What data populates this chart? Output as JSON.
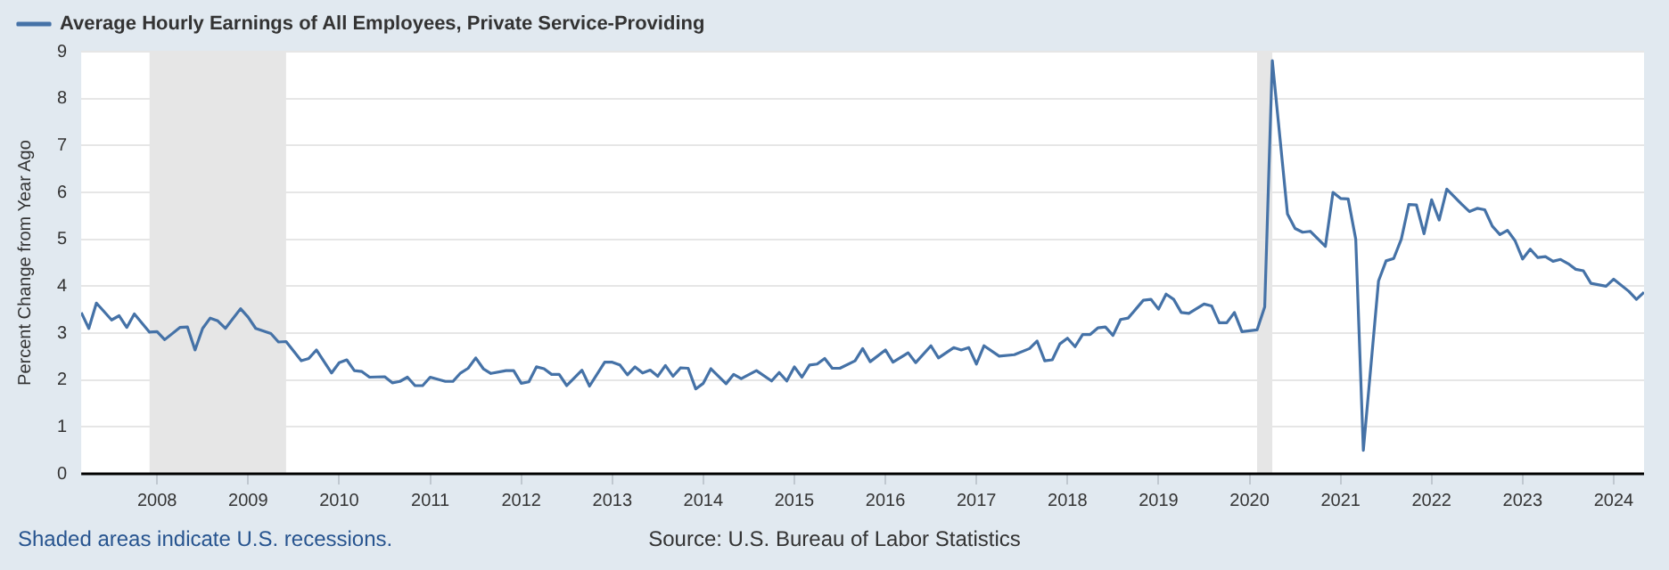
{
  "chart_data": {
    "type": "line",
    "ylabel": "Percent Change from Year Ago",
    "annotations": [
      "Shaded areas indicate U.S. recessions.",
      "Source: U.S. Bureau of Labor Statistics"
    ],
    "x": [
      "2007-03",
      "2007-04",
      "2007-05",
      "2007-07",
      "2007-08",
      "2007-09",
      "2007-10",
      "2007-12",
      "2008-01",
      "2008-02",
      "2008-04",
      "2008-05",
      "2008-06",
      "2008-07",
      "2008-08",
      "2008-09",
      "2008-10",
      "2008-12",
      "2009-01",
      "2009-02",
      "2009-04",
      "2009-05",
      "2009-06",
      "2009-08",
      "2009-09",
      "2009-10",
      "2009-12",
      "2010-01",
      "2010-02",
      "2010-03",
      "2010-04",
      "2010-05",
      "2010-07",
      "2010-08",
      "2010-09",
      "2010-10",
      "2010-11",
      "2010-12",
      "2011-01",
      "2011-03",
      "2011-04",
      "2011-05",
      "2011-06",
      "2011-07",
      "2011-08",
      "2011-09",
      "2011-11",
      "2011-12",
      "2012-01",
      "2012-02",
      "2012-03",
      "2012-04",
      "2012-05",
      "2012-06",
      "2012-07",
      "2012-09",
      "2012-10",
      "2012-12",
      "2013-01",
      "2013-02",
      "2013-03",
      "2013-04",
      "2013-05",
      "2013-06",
      "2013-07",
      "2013-08",
      "2013-09",
      "2013-10",
      "2013-11",
      "2013-12",
      "2014-01",
      "2014-02",
      "2014-04",
      "2014-05",
      "2014-06",
      "2014-08",
      "2014-10",
      "2014-11",
      "2014-12",
      "2015-01",
      "2015-02",
      "2015-03",
      "2015-04",
      "2015-05",
      "2015-06",
      "2015-07",
      "2015-09",
      "2015-10",
      "2015-11",
      "2016-01",
      "2016-02",
      "2016-04",
      "2016-05",
      "2016-07",
      "2016-08",
      "2016-10",
      "2016-11",
      "2016-12",
      "2017-01",
      "2017-02",
      "2017-04",
      "2017-06",
      "2017-08",
      "2017-09",
      "2017-10",
      "2017-11",
      "2017-12",
      "2018-01",
      "2018-02",
      "2018-03",
      "2018-04",
      "2018-05",
      "2018-06",
      "2018-07",
      "2018-08",
      "2018-09",
      "2018-11",
      "2018-12",
      "2019-01",
      "2019-02",
      "2019-03",
      "2019-04",
      "2019-05",
      "2019-07",
      "2019-08",
      "2019-09",
      "2019-10",
      "2019-11",
      "2019-12",
      "2020-02",
      "2020-03",
      "2020-04",
      "2020-06",
      "2020-07",
      "2020-08",
      "2020-09",
      "2020-11",
      "2020-12",
      "2021-01",
      "2021-02",
      "2021-03",
      "2021-04",
      "2021-06",
      "2021-07",
      "2021-08",
      "2021-09",
      "2021-10",
      "2021-11",
      "2021-12",
      "2022-01",
      "2022-02",
      "2022-03",
      "2022-05",
      "2022-06",
      "2022-07",
      "2022-08",
      "2022-09",
      "2022-10",
      "2022-11",
      "2022-12",
      "2023-01",
      "2023-02",
      "2023-03",
      "2023-04",
      "2023-05",
      "2023-06",
      "2023-07",
      "2023-08",
      "2023-09",
      "2023-10",
      "2023-12",
      "2024-01",
      "2024-03",
      "2024-04",
      "2024-05"
    ],
    "series": [
      {
        "name": "Average Hourly Earnings of All Employees, Private Service-Providing",
        "color": "#4572a7",
        "values": [
          3.44,
          3.1,
          3.64,
          3.28,
          3.37,
          3.12,
          3.41,
          3.02,
          3.03,
          2.86,
          3.12,
          3.13,
          2.64,
          3.1,
          3.32,
          3.26,
          3.1,
          3.52,
          3.34,
          3.1,
          2.99,
          2.81,
          2.82,
          2.41,
          2.46,
          2.64,
          2.15,
          2.37,
          2.43,
          2.2,
          2.18,
          2.06,
          2.07,
          1.94,
          1.97,
          2.06,
          1.88,
          1.88,
          2.06,
          1.97,
          1.97,
          2.15,
          2.25,
          2.47,
          2.24,
          2.14,
          2.2,
          2.2,
          1.93,
          1.96,
          2.28,
          2.24,
          2.12,
          2.12,
          1.88,
          2.21,
          1.87,
          2.38,
          2.38,
          2.32,
          2.11,
          2.28,
          2.15,
          2.21,
          2.08,
          2.31,
          2.08,
          2.26,
          2.25,
          1.81,
          1.93,
          2.24,
          1.92,
          2.12,
          2.03,
          2.2,
          1.98,
          2.16,
          1.98,
          2.28,
          2.06,
          2.32,
          2.34,
          2.46,
          2.25,
          2.25,
          2.41,
          2.67,
          2.39,
          2.64,
          2.38,
          2.58,
          2.37,
          2.73,
          2.47,
          2.69,
          2.64,
          2.69,
          2.34,
          2.73,
          2.51,
          2.54,
          2.67,
          2.83,
          2.41,
          2.43,
          2.77,
          2.89,
          2.71,
          2.97,
          2.97,
          3.11,
          3.13,
          2.95,
          3.29,
          3.32,
          3.7,
          3.72,
          3.51,
          3.83,
          3.72,
          3.44,
          3.42,
          3.62,
          3.58,
          3.22,
          3.22,
          3.44,
          3.03,
          3.07,
          3.56,
          8.81,
          5.54,
          5.23,
          5.15,
          5.17,
          4.85,
          6.0,
          5.87,
          5.86,
          5.0,
          0.5,
          4.11,
          4.54,
          4.59,
          5.0,
          5.74,
          5.73,
          5.12,
          5.84,
          5.41,
          6.07,
          5.74,
          5.59,
          5.66,
          5.63,
          5.28,
          5.1,
          5.19,
          4.97,
          4.58,
          4.79,
          4.61,
          4.63,
          4.53,
          4.57,
          4.48,
          4.36,
          4.33,
          4.06,
          4.0,
          4.15,
          3.89,
          3.72,
          3.87
        ]
      }
    ],
    "xlim": [
      "2007-03",
      "2024-05"
    ],
    "xticks": [
      "2008",
      "2009",
      "2010",
      "2011",
      "2012",
      "2013",
      "2014",
      "2015",
      "2016",
      "2017",
      "2018",
      "2019",
      "2020",
      "2021",
      "2022",
      "2023",
      "2024"
    ],
    "ylim": [
      0,
      9
    ],
    "yticks": [
      0,
      1,
      2,
      3,
      4,
      5,
      6,
      7,
      8,
      9
    ],
    "bands": [
      {
        "axis": "x",
        "from": "2007-12",
        "to": "2009-06",
        "color": "#e6e6e6"
      },
      {
        "axis": "x",
        "from": "2020-02",
        "to": "2020-04",
        "color": "#e6e6e6"
      }
    ],
    "grid": "y",
    "legend": "top left"
  }
}
